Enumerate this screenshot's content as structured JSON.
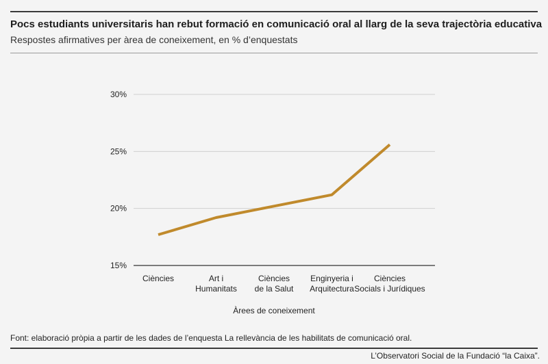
{
  "header": {
    "title": "Pocs estudiants universitaris han rebut formació en comunicació oral al llarg de la seva trajectòria educativa",
    "subtitle": "Respostes afirmatives per àrea de coneixement, en % d’enquestats"
  },
  "footer": {
    "source": "Font: elaboració pròpia a partir de les dades de l’enquesta La rellevància de les habilitats de comunicació oral.",
    "credit": "L’Observatori Social de la Fundació “la Caixa”."
  },
  "chart_data": {
    "type": "line",
    "title": "Pocs estudiants universitaris han rebut formació en comunicació oral al llarg de la seva trajectòria educativa",
    "subtitle": "Respostes afirmatives per àrea de coneixement, en % d’enquestats",
    "xlabel": "Àrees de coneixement",
    "ylabel": "",
    "categories": [
      [
        "Ciències"
      ],
      [
        "Art i",
        "Humanitats"
      ],
      [
        "Ciències",
        "de la Salut"
      ],
      [
        "Enginyeria i",
        "Arquitectura"
      ],
      [
        "Ciències",
        "Socials i Jurídiques"
      ]
    ],
    "series": [
      {
        "values": [
          17.7,
          19.2,
          20.2,
          21.2,
          25.6
        ],
        "color": "#c08a2c"
      }
    ],
    "ylim": [
      15,
      30
    ],
    "yticks": [
      15,
      20,
      25,
      30
    ],
    "ytick_labels": [
      "15%",
      "20%",
      "25%",
      "30%"
    ],
    "grid": true
  }
}
